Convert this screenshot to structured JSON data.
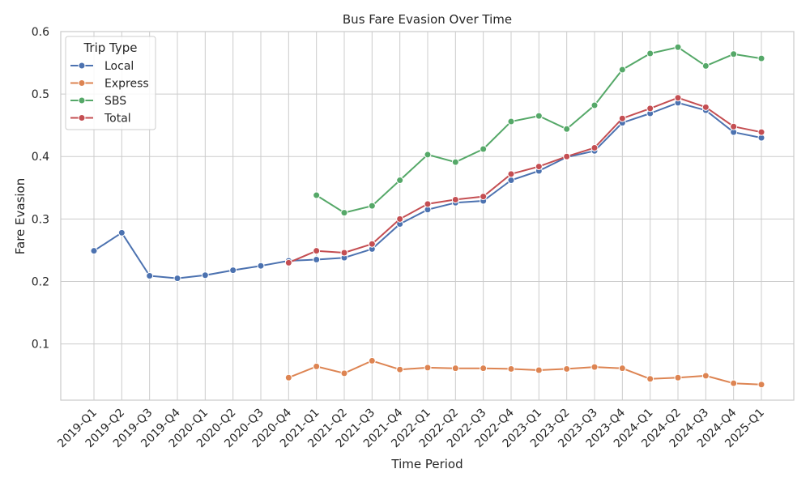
{
  "chart_data": {
    "type": "line",
    "title": "Bus Fare Evasion Over Time",
    "xlabel": "Time Period",
    "ylabel": "Fare Evasion",
    "ylim": [
      0.01,
      0.6
    ],
    "yticks": [
      0.1,
      0.2,
      0.3,
      0.4,
      0.5,
      0.6
    ],
    "ytick_labels": [
      "0.1",
      "0.2",
      "0.3",
      "0.4",
      "0.5",
      "0.6"
    ],
    "grid": true,
    "legend": {
      "title": "Trip Type",
      "position": "upper-left"
    },
    "categories": [
      "2019-Q1",
      "2019-Q2",
      "2019-Q3",
      "2019-Q4",
      "2020-Q1",
      "2020-Q2",
      "2020-Q3",
      "2020-Q4",
      "2021-Q1",
      "2021-Q2",
      "2021-Q3",
      "2021-Q4",
      "2022-Q1",
      "2022-Q2",
      "2022-Q3",
      "2022-Q4",
      "2023-Q1",
      "2023-Q2",
      "2023-Q3",
      "2023-Q4",
      "2024-Q1",
      "2024-Q2",
      "2024-Q3",
      "2024-Q4",
      "2025-Q1"
    ],
    "series": [
      {
        "name": "Local",
        "color": "#4c72b0",
        "values": [
          0.249,
          0.278,
          0.209,
          0.205,
          0.21,
          0.218,
          0.225,
          0.233,
          0.235,
          0.238,
          0.252,
          0.292,
          0.315,
          0.326,
          0.329,
          0.362,
          0.377,
          0.399,
          0.409,
          0.454,
          0.469,
          0.486,
          0.474,
          0.439,
          0.43
        ]
      },
      {
        "name": "Express",
        "color": "#dd8452",
        "values": [
          null,
          null,
          null,
          null,
          null,
          null,
          null,
          0.046,
          0.064,
          0.053,
          0.073,
          0.059,
          0.062,
          0.061,
          0.061,
          0.06,
          0.058,
          0.06,
          0.063,
          0.061,
          0.044,
          0.046,
          0.049,
          0.037,
          0.035
        ]
      },
      {
        "name": "SBS",
        "color": "#55a868",
        "values": [
          null,
          null,
          null,
          null,
          null,
          null,
          null,
          null,
          0.338,
          0.31,
          0.321,
          0.362,
          0.403,
          0.391,
          0.412,
          0.456,
          0.465,
          0.444,
          0.482,
          0.539,
          0.565,
          0.575,
          0.545,
          0.564,
          0.557
        ]
      },
      {
        "name": "Total",
        "color": "#c44e52",
        "values": [
          null,
          null,
          null,
          null,
          null,
          null,
          null,
          0.23,
          0.249,
          0.246,
          0.26,
          0.3,
          0.324,
          0.331,
          0.336,
          0.372,
          0.384,
          0.4,
          0.414,
          0.461,
          0.477,
          0.494,
          0.479,
          0.448,
          0.439
        ]
      }
    ]
  }
}
